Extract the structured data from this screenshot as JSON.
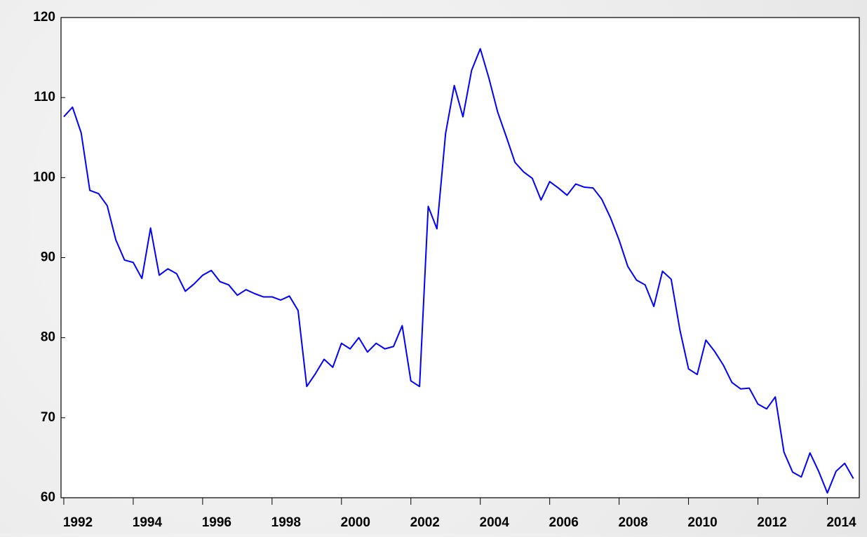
{
  "chart_data": {
    "type": "line",
    "x": [
      1992,
      1992.25,
      1992.5,
      1992.75,
      1993,
      1993.25,
      1993.5,
      1993.75,
      1994,
      1994.25,
      1994.5,
      1994.75,
      1995,
      1995.25,
      1995.5,
      1995.75,
      1996,
      1996.25,
      1996.5,
      1996.75,
      1997,
      1997.25,
      1997.5,
      1997.75,
      1998,
      1998.25,
      1998.5,
      1998.75,
      1999,
      1999.25,
      1999.5,
      1999.75,
      2000,
      2000.25,
      2000.5,
      2000.75,
      2001,
      2001.25,
      2001.5,
      2001.75,
      2002,
      2002.25,
      2002.5,
      2002.75,
      2003,
      2003.25,
      2003.5,
      2003.75,
      2004,
      2004.25,
      2004.5,
      2004.75,
      2005,
      2005.25,
      2005.5,
      2005.75,
      2006,
      2006.25,
      2006.5,
      2006.75,
      2007,
      2007.25,
      2007.5,
      2007.75,
      2008,
      2008.25,
      2008.5,
      2008.75,
      2009,
      2009.25,
      2009.5,
      2009.75,
      2010,
      2010.25,
      2010.5,
      2010.75,
      2011,
      2011.25,
      2011.5,
      2011.75,
      2012,
      2012.25,
      2012.5,
      2012.75,
      2013,
      2013.25,
      2013.5,
      2013.75,
      2014,
      2014.25,
      2014.5,
      2014.75
    ],
    "series": [
      {
        "color": "#0000ff",
        "values": [
          107.6,
          108.8,
          105.6,
          98.4,
          98.0,
          96.5,
          92.2,
          89.7,
          89.4,
          87.4,
          93.7,
          87.8,
          88.6,
          88.0,
          85.8,
          86.7,
          87.8,
          88.4,
          87.0,
          86.6,
          85.3,
          86.0,
          85.5,
          85.1,
          85.1,
          84.7,
          85.2,
          83.4,
          73.9,
          75.5,
          77.3,
          76.3,
          79.3,
          78.6,
          80.0,
          78.2,
          79.3,
          78.6,
          78.9,
          81.5,
          74.6,
          73.9,
          96.4,
          93.6,
          105.5,
          111.5,
          107.6,
          113.4,
          116.1,
          112.4,
          108.2,
          105.1,
          101.9,
          100.7,
          99.9,
          97.2,
          99.5,
          98.7,
          97.8,
          99.2,
          98.8,
          98.7,
          97.3,
          95.0,
          92.2,
          88.9,
          87.2,
          86.6,
          83.9,
          88.3,
          87.3,
          81.0,
          76.1,
          75.4,
          79.7,
          78.3,
          76.6,
          74.4,
          73.6,
          73.7,
          71.7,
          71.1,
          72.6,
          65.7,
          63.2,
          62.6,
          65.6,
          63.3,
          60.6,
          63.3,
          64.3,
          62.4
        ]
      }
    ],
    "xlim": [
      1991.92,
      2014.92
    ],
    "xticks": [
      1992,
      1994,
      1996,
      1998,
      2000,
      2002,
      2004,
      2006,
      2008,
      2010,
      2012,
      2014
    ],
    "ylim": [
      60,
      120
    ],
    "yticks": [
      60,
      70,
      80,
      90,
      100,
      110,
      120
    ],
    "grid": false
  }
}
